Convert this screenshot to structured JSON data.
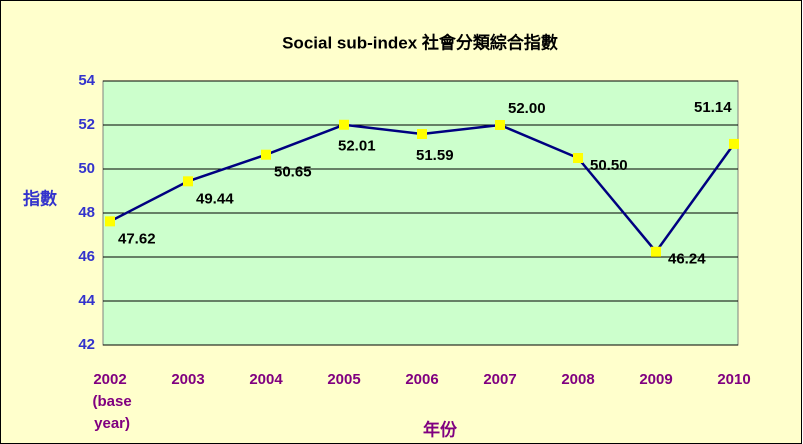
{
  "chart_data": {
    "type": "line",
    "title": "Social sub-index 社會分類綜合指數",
    "x_label": "年份",
    "y_label": "指數",
    "categories": [
      "2002 (base year)",
      "2003",
      "2004",
      "2005",
      "2006",
      "2007",
      "2008",
      "2009",
      "2010"
    ],
    "series": [
      {
        "name": "Social sub-index",
        "color": "#000080",
        "marker_color": "#ffff00",
        "values": [
          47.62,
          49.44,
          50.65,
          52.01,
          51.59,
          52.0,
          50.5,
          46.24,
          51.14
        ],
        "value_labels": [
          "47.62",
          "49.44",
          "50.65",
          "52.01",
          "51.59",
          "52.00",
          "50.50",
          "46.24",
          "51.14"
        ]
      }
    ],
    "ylim": [
      42,
      54
    ],
    "yticks": [
      42,
      44,
      46,
      48,
      50,
      52,
      54
    ],
    "grid": true
  }
}
